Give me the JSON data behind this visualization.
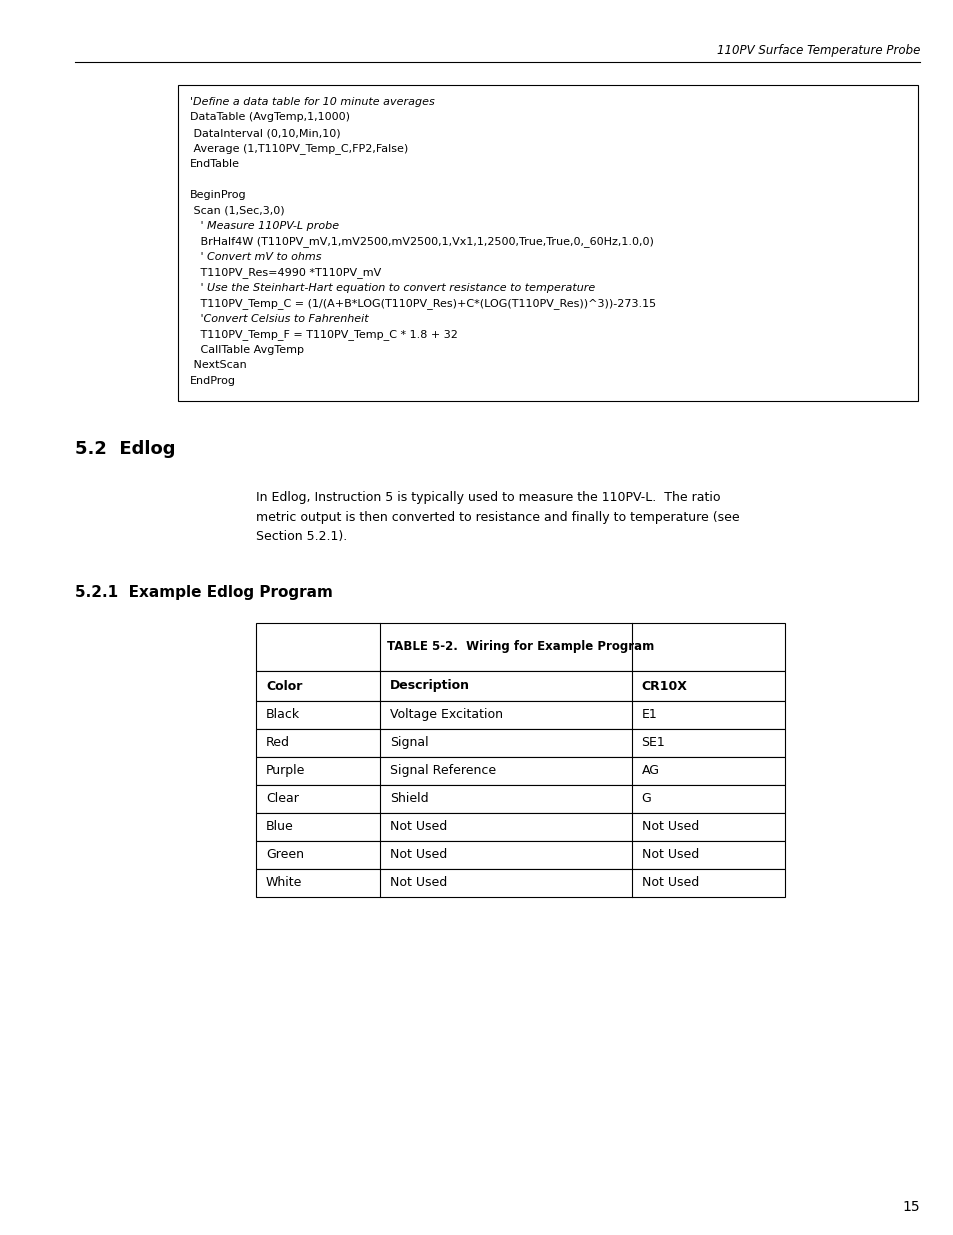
{
  "header_text": "110PV Surface Temperature Probe",
  "page_number": "15",
  "code_box_lines": [
    {
      "text": "'Define a data table for 10 minute averages",
      "italic": true
    },
    {
      "text": "DataTable (AvgTemp,1,1000)",
      "italic": false
    },
    {
      "text": " DataInterval (0,10,Min,10)",
      "italic": false
    },
    {
      "text": " Average (1,T110PV_Temp_C,FP2,False)",
      "italic": false
    },
    {
      "text": "EndTable",
      "italic": false
    },
    {
      "text": "",
      "italic": false
    },
    {
      "text": "BeginProg",
      "italic": false
    },
    {
      "text": " Scan (1,Sec,3,0)",
      "italic": false
    },
    {
      "text": "   ' Measure 110PV-L probe",
      "italic": true
    },
    {
      "text": "   BrHalf4W (T110PV_mV,1,mV2500,mV2500,1,Vx1,1,2500,True,True,0,_60Hz,1.0,0)",
      "italic": false
    },
    {
      "text": "   ' Convert mV to ohms",
      "italic": true
    },
    {
      "text": "   T110PV_Res=4990 *T110PV_mV",
      "italic": false
    },
    {
      "text": "   ' Use the Steinhart-Hart equation to convert resistance to temperature",
      "italic": true
    },
    {
      "text": "   T110PV_Temp_C = (1/(A+B*LOG(T110PV_Res)+C*(LOG(T110PV_Res))^3))-273.15",
      "italic": false
    },
    {
      "text": "   'Convert Celsius to Fahrenheit",
      "italic": true
    },
    {
      "text": "   T110PV_Temp_F = T110PV_Temp_C * 1.8 + 32",
      "italic": false
    },
    {
      "text": "   CallTable AvgTemp",
      "italic": false
    },
    {
      "text": " NextScan",
      "italic": false
    },
    {
      "text": "EndProg",
      "italic": false
    }
  ],
  "section_title": "5.2  Edlog",
  "body_lines": [
    "In Edlog, Instruction 5 is typically used to measure the 110PV-L.  The ratio",
    "metric output is then converted to resistance and finally to temperature (see",
    "Section 5.2.1)."
  ],
  "subsection_title": "5.2.1  Example Edlog Program",
  "table_title": "TABLE 5-2.  Wiring for Example Program",
  "table_headers": [
    "Color",
    "Description",
    "CR10X"
  ],
  "table_rows": [
    [
      "Black",
      "Voltage Excitation",
      "E1"
    ],
    [
      "Red",
      "Signal",
      "SE1"
    ],
    [
      "Purple",
      "Signal Reference",
      "AG"
    ],
    [
      "Clear",
      "Shield",
      "G"
    ],
    [
      "Blue",
      "Not Used",
      "Not Used"
    ],
    [
      "Green",
      "Not Used",
      "Not Used"
    ],
    [
      "White",
      "Not Used",
      "Not Used"
    ]
  ],
  "bg_color": "#ffffff",
  "text_color": "#000000"
}
